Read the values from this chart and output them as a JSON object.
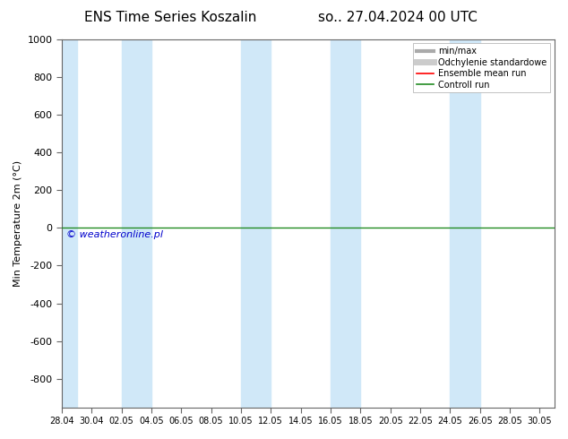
{
  "title_left": "ENS Time Series Koszalin",
  "title_right": "so.. 27.04.2024 00 UTC",
  "ylabel": "Min Temperature 2m (°C)",
  "ylim_top": -950,
  "ylim_bottom": 1000,
  "yticks": [
    -800,
    -600,
    -400,
    -200,
    0,
    200,
    400,
    600,
    800,
    1000
  ],
  "xtick_labels": [
    "28.04",
    "30.04",
    "02.05",
    "04.05",
    "06.05",
    "08.05",
    "10.05",
    "12.05",
    "14.05",
    "16.05",
    "18.05",
    "20.05",
    "22.05",
    "24.05",
    "26.05",
    "28.05",
    "30.05"
  ],
  "xtick_positions": [
    0,
    2,
    4,
    6,
    8,
    10,
    12,
    14,
    16,
    18,
    20,
    22,
    24,
    26,
    28,
    30,
    32
  ],
  "xlim": [
    0,
    33
  ],
  "band_color": "#d0e8f8",
  "shaded_bands": [
    [
      0,
      1
    ],
    [
      4,
      6
    ],
    [
      12,
      14
    ],
    [
      18,
      20
    ],
    [
      26,
      28
    ]
  ],
  "control_run_y": 0,
  "control_run_color": "#228B22",
  "ensemble_mean_color": "#ff0000",
  "minmax_color": "#aaaaaa",
  "std_color": "#cccccc",
  "watermark_text": "© weatheronline.pl",
  "watermark_color": "#0000cc",
  "bg_color": "#ffffff",
  "legend_labels": [
    "min/max",
    "Odchylenie standardowe",
    "Ensemble mean run",
    "Controll run"
  ],
  "legend_colors": [
    "#aaaaaa",
    "#cccccc",
    "#ff0000",
    "#228B22"
  ],
  "title_fontsize": 11,
  "axis_fontsize": 8,
  "tick_fontsize": 8,
  "legend_fontsize": 7
}
